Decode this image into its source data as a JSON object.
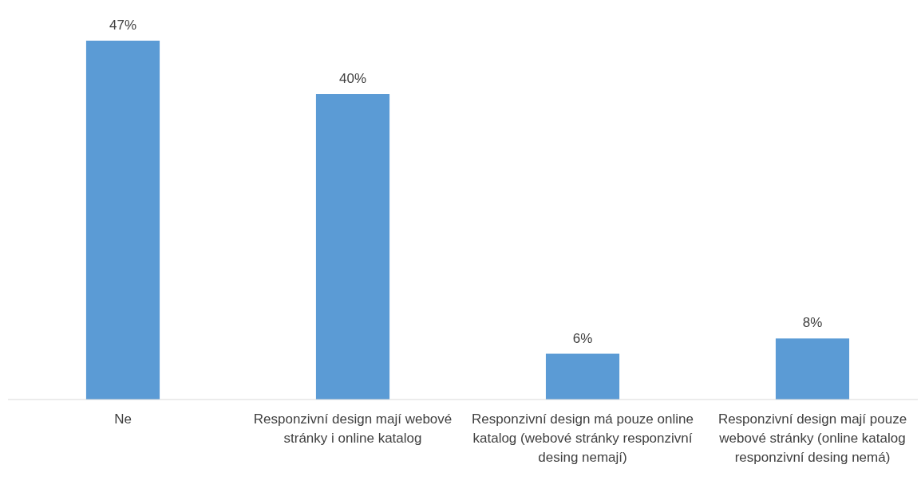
{
  "chart_data": {
    "type": "bar",
    "categories": [
      "Ne",
      "Responzivní design mají webové stránky i online katalog",
      "Responzivní design má pouze online katalog  (webové stránky responzivní desing nemají)",
      "Responzivní design mají pouze webové stránky (online katalog responzivní desing nemá)"
    ],
    "values": [
      47,
      40,
      6,
      8
    ],
    "value_labels": [
      "47%",
      "40%",
      "6%",
      "8%"
    ],
    "color": "#5b9bd5"
  }
}
